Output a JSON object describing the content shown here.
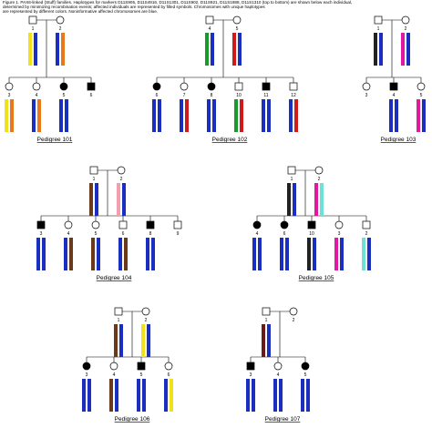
{
  "caption": [
    "Figure 1. PAX6-linked (Stuff) families. Haplotypes for markers D11S905, D11S4916, D11S1301, D11S902, D11S921, D11S1888, D11S1310 (top to bottom) are shown below each individual,",
    "determined by minimizing recombination events; affected individuals are represented by filled symbols. Chromosomes with unique haplotypes",
    "are represented by different colors. Noninformative affected chromosomes are blue."
  ],
  "pedigrees": [
    {
      "title": "Pedigree 101",
      "parents": [
        {
          "sex": "m",
          "affected": false,
          "id": "1",
          "haplotypes": [
            "#f2e01a",
            "#1a2fbf"
          ]
        },
        {
          "sex": "f",
          "affected": false,
          "id": "2",
          "haplotypes": [
            "#1a2fbf",
            "#e8781a"
          ]
        }
      ],
      "children": [
        {
          "sex": "f",
          "affected": false,
          "id": "3",
          "haplotypes": [
            "#f2e01a",
            "#e8781a"
          ]
        },
        {
          "sex": "f",
          "affected": false,
          "id": "4",
          "haplotypes": [
            "#1a2fbf",
            "#e8781a"
          ]
        },
        {
          "sex": "f",
          "affected": true,
          "id": "5",
          "haplotypes": [
            "#1a2fbf",
            "#1a2fbf"
          ]
        },
        {
          "sex": "m",
          "affected": true,
          "id": "6",
          "haplotypes": []
        }
      ]
    },
    {
      "title": "Pedigree 102",
      "parents": [
        {
          "sex": "m",
          "affected": false,
          "id": "4",
          "haplotypes": [
            "#1a9a2a",
            "#1a2fbf"
          ]
        },
        {
          "sex": "f",
          "affected": false,
          "id": "5",
          "haplotypes": [
            "#d01a1a",
            "#1a2fbf"
          ]
        }
      ],
      "children": [
        {
          "sex": "f",
          "affected": true,
          "id": "6",
          "haplotypes": [
            "#1a2fbf",
            "#1a2fbf"
          ]
        },
        {
          "sex": "f",
          "affected": false,
          "id": "7",
          "haplotypes": [
            "#1a2fbf",
            "#d01a1a"
          ]
        },
        {
          "sex": "f",
          "affected": true,
          "id": "8",
          "haplotypes": [
            "#1a2fbf",
            "#1a2fbf"
          ]
        },
        {
          "sex": "m",
          "affected": false,
          "id": "10",
          "haplotypes": [
            "#1a9a2a",
            "#d01a1a"
          ]
        },
        {
          "sex": "m",
          "affected": true,
          "id": "11",
          "haplotypes": [
            "#1a2fbf",
            "#1a2fbf"
          ]
        },
        {
          "sex": "m",
          "affected": false,
          "id": "12",
          "haplotypes": [
            "#1a2fbf",
            "#d01a1a"
          ]
        }
      ]
    },
    {
      "title": "Pedigree 103",
      "parents": [
        {
          "sex": "m",
          "affected": false,
          "id": "1",
          "haplotypes": [
            "#222222",
            "#1a2fbf"
          ]
        },
        {
          "sex": "f",
          "affected": false,
          "id": "2",
          "haplotypes": [
            "#e01aa0",
            "#1a2fbf"
          ]
        }
      ],
      "children": [
        {
          "sex": "f",
          "affected": false,
          "id": "3",
          "haplotypes": []
        },
        {
          "sex": "m",
          "affected": true,
          "id": "4",
          "haplotypes": [
            "#1a2fbf",
            "#1a2fbf"
          ]
        },
        {
          "sex": "f",
          "affected": false,
          "id": "5",
          "haplotypes": [
            "#e01aa0",
            "#1a2fbf"
          ]
        }
      ]
    },
    {
      "title": "Pedigree 104",
      "parents": [
        {
          "sex": "m",
          "affected": false,
          "id": "1",
          "haplotypes": [
            "#6b3a1a",
            "#1a2fbf"
          ]
        },
        {
          "sex": "f",
          "affected": false,
          "id": "2",
          "haplotypes": [
            "#f2a0b0",
            "#1a2fbf"
          ]
        }
      ],
      "children": [
        {
          "sex": "m",
          "affected": true,
          "id": "3",
          "haplotypes": [
            "#1a2fbf",
            "#1a2fbf"
          ]
        },
        {
          "sex": "f",
          "affected": false,
          "id": "4",
          "haplotypes": [
            "#1a2fbf",
            "#6b3a1a"
          ]
        },
        {
          "sex": "f",
          "affected": false,
          "id": "5",
          "haplotypes": [
            "#6b3a1a",
            "#1a2fbf"
          ]
        },
        {
          "sex": "m",
          "affected": false,
          "id": "6",
          "haplotypes": [
            "#1a2fbf",
            "#6b3a1a"
          ]
        },
        {
          "sex": "m",
          "affected": true,
          "id": "8",
          "haplotypes": [
            "#1a2fbf",
            "#1a2fbf"
          ]
        },
        {
          "sex": "m",
          "affected": false,
          "id": "9",
          "haplotypes": []
        }
      ]
    },
    {
      "title": "Pedigree 105",
      "parents": [
        {
          "sex": "m",
          "affected": false,
          "id": "1",
          "haplotypes": [
            "#222222",
            "#1a2fbf"
          ]
        },
        {
          "sex": "f",
          "affected": false,
          "id": "2",
          "haplotypes": [
            "#e01aa0",
            "#6ee0d8"
          ]
        }
      ],
      "children": [
        {
          "sex": "f",
          "affected": true,
          "id": "4",
          "haplotypes": [
            "#1a2fbf",
            "#1a2fbf"
          ]
        },
        {
          "sex": "f",
          "affected": true,
          "id": "6",
          "haplotypes": [
            "#1a2fbf",
            "#1a2fbf"
          ]
        },
        {
          "sex": "m",
          "affected": true,
          "id": "10",
          "haplotypes": [
            "#222222",
            "#1a2fbf"
          ]
        },
        {
          "sex": "f",
          "affected": false,
          "id": "3",
          "haplotypes": [
            "#e01aa0",
            "#1a2fbf"
          ]
        },
        {
          "sex": "m",
          "affected": false,
          "id": "2",
          "haplotypes": [
            "#6ee0d8",
            "#1a2fbf"
          ]
        }
      ]
    },
    {
      "title": "Pedigree 106",
      "parents": [
        {
          "sex": "m",
          "affected": false,
          "id": "1",
          "haplotypes": [
            "#6b3a1a",
            "#1a2fbf"
          ]
        },
        {
          "sex": "f",
          "affected": false,
          "id": "2",
          "haplotypes": [
            "#f2e01a",
            "#1a2fbf"
          ]
        }
      ],
      "children": [
        {
          "sex": "f",
          "affected": true,
          "id": "3",
          "haplotypes": [
            "#1a2fbf",
            "#1a2fbf"
          ]
        },
        {
          "sex": "f",
          "affected": false,
          "id": "4",
          "haplotypes": [
            "#6b3a1a",
            "#1a2fbf"
          ]
        },
        {
          "sex": "m",
          "affected": true,
          "id": "5",
          "haplotypes": [
            "#1a2fbf",
            "#1a2fbf"
          ]
        },
        {
          "sex": "f",
          "affected": false,
          "id": "6",
          "haplotypes": [
            "#1a2fbf",
            "#f2e01a"
          ]
        }
      ]
    },
    {
      "title": "Pedigree 107",
      "parents": [
        {
          "sex": "m",
          "affected": false,
          "id": "1",
          "haplotypes": [
            "#6b1a1a",
            "#1a2fbf"
          ]
        },
        {
          "sex": "f",
          "affected": false,
          "id": "2",
          "haplotypes": []
        }
      ],
      "children": [
        {
          "sex": "m",
          "affected": true,
          "id": "3",
          "haplotypes": [
            "#1a2fbf",
            "#1a2fbf"
          ]
        },
        {
          "sex": "f",
          "affected": false,
          "id": "4",
          "haplotypes": [
            "#1a2fbf",
            "#1a2fbf"
          ]
        },
        {
          "sex": "f",
          "affected": true,
          "id": "5",
          "haplotypes": [
            "#1a2fbf",
            "#1a2fbf"
          ]
        }
      ]
    }
  ]
}
